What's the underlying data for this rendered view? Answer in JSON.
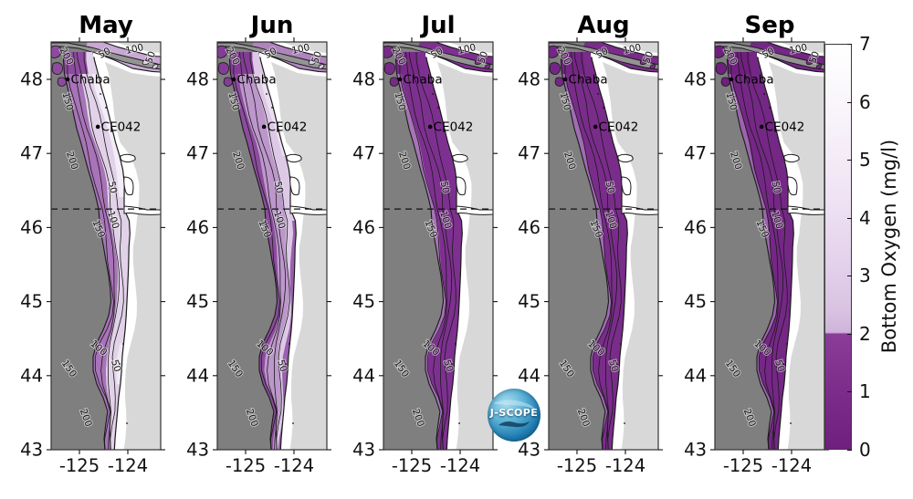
{
  "months": [
    {
      "label": "May",
      "bands": [
        [
          0,
          0.58,
          "#e2d2e9"
        ],
        [
          0.58,
          1,
          "#a873b8"
        ]
      ],
      "patches": [
        [
          0,
          0.16,
          "#f3edf7",
          30,
          172
        ],
        [
          0,
          0.14,
          "#efe7f3",
          318,
          378
        ]
      ],
      "strait": "#c9a8d4",
      "mouth": "#8d4b9e"
    },
    {
      "label": "Jun",
      "bands": [
        [
          0,
          0.34,
          "#ddc9e6"
        ],
        [
          0.34,
          0.78,
          "#bd97cc"
        ],
        [
          0.78,
          1,
          "#8d4b9e"
        ]
      ],
      "patches": [
        [
          0,
          0.12,
          "#ecdff1",
          35,
          125
        ],
        [
          0,
          0.15,
          "#9a5fae",
          190,
          447
        ]
      ],
      "strait": "#b083bf",
      "mouth": "#843c96"
    },
    {
      "label": "Jul",
      "bands": [
        [
          0,
          0.86,
          "#7e3090"
        ],
        [
          0.86,
          1,
          "#a873b8"
        ]
      ],
      "patches": [],
      "strait": "#7e3090",
      "mouth": "#782a89"
    },
    {
      "label": "Aug",
      "bands": [
        [
          0,
          0.88,
          "#7a2c8b"
        ],
        [
          0.88,
          1,
          "#a06cb2"
        ]
      ],
      "patches": [],
      "strait": "#7a2c8b",
      "mouth": "#742684"
    },
    {
      "label": "Sep",
      "bands": [
        [
          0,
          0.9,
          "#752786"
        ],
        [
          0.9,
          1,
          "#9c64ad"
        ]
      ],
      "patches": [],
      "strait": "#752786",
      "mouth": "#701f80"
    }
  ],
  "stations": [
    {
      "name": "Chaba",
      "lon": -125.245,
      "lat": 48.0
    },
    {
      "name": "CE042",
      "lon": -124.62,
      "lat": 47.36
    }
  ],
  "axes": {
    "x_tick_labels": [
      "-125",
      "-124"
    ],
    "y_tick_labels": [
      "48",
      "47",
      "46",
      "45",
      "44",
      "43"
    ]
  },
  "contour_levels": [
    {
      "text": "50"
    },
    {
      "text": "100"
    },
    {
      "text": "150"
    },
    {
      "text": "200"
    }
  ],
  "colorbar": {
    "label": "Bottom Oxygen (mg/l)",
    "tick_labels": [
      "7",
      "6",
      "5",
      "4",
      "3",
      "2",
      "1",
      "0"
    ]
  },
  "logo": {
    "text": "J-SCOPE"
  },
  "colors": {
    "deep_ocean": "#7f7f7f",
    "channel": "#949494",
    "land_far": "#d8d8d8",
    "land_near": "#ffffff",
    "coastline": "#1a1a1a",
    "contour": "#1a1a1a",
    "hypoxic_dark": "#752786",
    "oxygenated_light": "#e2d2e9"
  },
  "chart_data": {
    "type": "heatmap",
    "subtype": "geographic filled-contour maps of bottom oxygen, Washington-Oregon shelf",
    "panels": [
      "May",
      "Jun",
      "Jul",
      "Aug",
      "Sep"
    ],
    "variable": "Bottom Oxygen",
    "units": "mg/l",
    "colorbar_range": [
      0,
      7
    ],
    "colorbar_ticks": [
      0,
      1,
      2,
      3,
      4,
      5,
      6,
      7
    ],
    "hypoxia_threshold": 2,
    "x_axis": {
      "ticks": [
        -125,
        -124
      ],
      "range": [
        -125.6,
        -123.3
      ],
      "meaning": "longitude (degrees)"
    },
    "y_axis": {
      "ticks": [
        43,
        44,
        45,
        46,
        47,
        48
      ],
      "range": [
        43,
        48.5
      ],
      "meaning": "latitude (degrees N)"
    },
    "bathymetry_contours_m": [
      50,
      100,
      150,
      200
    ],
    "stations": [
      {
        "name": "Chaba",
        "approx_lat": 48.0,
        "approx_lon": -125.25
      },
      {
        "name": "CE042",
        "approx_lat": 47.36,
        "approx_lon": -124.62
      }
    ],
    "dashed_reference_latitude": 46.25,
    "legend_position": "right colorbar",
    "depicted_pattern": "Light purple (2-7 mg/l) shelf waters in May become progressively dark purple (<2 mg/l, hypoxic) by Aug-Sep along the coast"
  }
}
